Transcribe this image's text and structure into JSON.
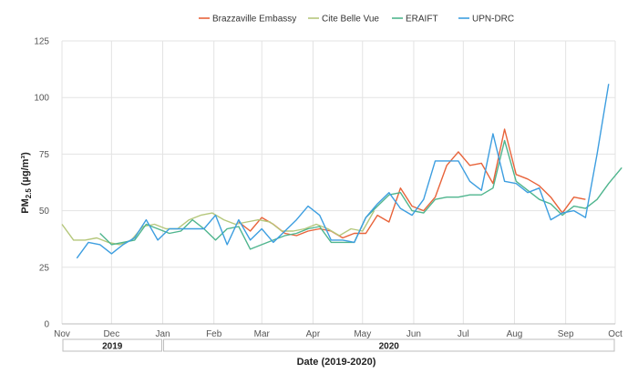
{
  "chart_data": {
    "type": "line",
    "title": "",
    "xlabel": "Date (2019-2020)",
    "ylabel_main": "PM",
    "ylabel_sub": "2.5",
    "ylabel_units": "(µg/m³)",
    "ylim": [
      0,
      125
    ],
    "yticks": [
      0,
      25,
      50,
      75,
      100,
      125
    ],
    "x_ticks": [
      {
        "date": "2019-11-01",
        "label": "Nov"
      },
      {
        "date": "2019-12-01",
        "label": "Dec"
      },
      {
        "date": "2020-01-01",
        "label": "Jan"
      },
      {
        "date": "2020-02-01",
        "label": "Feb"
      },
      {
        "date": "2020-03-01",
        "label": "Mar"
      },
      {
        "date": "2020-04-01",
        "label": "Apr"
      },
      {
        "date": "2020-05-01",
        "label": "May"
      },
      {
        "date": "2020-06-01",
        "label": "Jun"
      },
      {
        "date": "2020-07-01",
        "label": "Jul"
      },
      {
        "date": "2020-08-01",
        "label": "Aug"
      },
      {
        "date": "2020-09-01",
        "label": "Sep"
      },
      {
        "date": "2020-10-01",
        "label": "Oct"
      }
    ],
    "x_range": [
      "2019-11-01",
      "2020-10-01"
    ],
    "year_bands": [
      {
        "label": "2019",
        "start": "2019-11-01",
        "end": "2020-01-01"
      },
      {
        "label": "2020",
        "start": "2020-01-01",
        "end": "2020-10-01"
      }
    ],
    "grid": true,
    "legend_position": "top",
    "series": [
      {
        "name": "Brazzaville Embassy",
        "color": "#e8633a",
        "points": [
          [
            "2020-02-16",
            45
          ],
          [
            "2020-02-23",
            41
          ],
          [
            "2020-03-01",
            47
          ],
          [
            "2020-03-08",
            44
          ],
          [
            "2020-03-15",
            40
          ],
          [
            "2020-03-22",
            39
          ],
          [
            "2020-03-29",
            41
          ],
          [
            "2020-04-05",
            42
          ],
          [
            "2020-04-12",
            41
          ],
          [
            "2020-04-19",
            38
          ],
          [
            "2020-04-26",
            40
          ],
          [
            "2020-05-03",
            40
          ],
          [
            "2020-05-10",
            48
          ],
          [
            "2020-05-17",
            45
          ],
          [
            "2020-05-24",
            60
          ],
          [
            "2020-05-31",
            52
          ],
          [
            "2020-06-07",
            50
          ],
          [
            "2020-06-14",
            56
          ],
          [
            "2020-06-21",
            70
          ],
          [
            "2020-06-28",
            76
          ],
          [
            "2020-07-05",
            70
          ],
          [
            "2020-07-12",
            71
          ],
          [
            "2020-07-19",
            62
          ],
          [
            "2020-07-26",
            86
          ],
          [
            "2020-08-02",
            66
          ],
          [
            "2020-08-09",
            64
          ],
          [
            "2020-08-16",
            61
          ],
          [
            "2020-08-23",
            56
          ],
          [
            "2020-08-30",
            49
          ],
          [
            "2020-09-06",
            56
          ],
          [
            "2020-09-13",
            55
          ]
        ]
      },
      {
        "name": "Cite Belle Vue",
        "color": "#b5c77b",
        "points": [
          [
            "2019-11-01",
            44
          ],
          [
            "2019-11-08",
            37
          ],
          [
            "2019-11-15",
            37
          ],
          [
            "2019-11-22",
            38
          ],
          [
            "2019-11-29",
            36
          ],
          [
            "2019-12-06",
            35
          ],
          [
            "2019-12-13",
            37
          ],
          [
            "2019-12-20",
            43
          ],
          [
            "2019-12-27",
            44
          ],
          [
            "2020-01-03",
            42
          ],
          [
            "2020-01-10",
            42
          ],
          [
            "2020-01-17",
            46
          ],
          [
            "2020-01-24",
            48
          ],
          [
            "2020-01-31",
            49
          ],
          [
            "2020-02-07",
            46
          ],
          [
            "2020-02-14",
            44
          ],
          [
            "2020-02-21",
            45
          ],
          [
            "2020-02-28",
            46
          ],
          [
            "2020-03-06",
            45
          ],
          [
            "2020-03-13",
            41
          ],
          [
            "2020-03-20",
            41
          ],
          [
            "2020-03-27",
            42
          ],
          [
            "2020-04-03",
            44
          ],
          [
            "2020-04-10",
            42
          ],
          [
            "2020-04-17",
            39
          ],
          [
            "2020-04-24",
            42
          ],
          [
            "2020-05-01",
            41
          ],
          [
            "2020-05-08",
            50
          ]
        ]
      },
      {
        "name": "ERAIFT",
        "color": "#4fb58e",
        "points": [
          [
            "2019-11-24",
            40
          ],
          [
            "2019-12-01",
            35
          ],
          [
            "2019-12-08",
            36
          ],
          [
            "2019-12-15",
            37
          ],
          [
            "2019-12-22",
            44
          ],
          [
            "2019-12-29",
            42
          ],
          [
            "2020-01-05",
            40
          ],
          [
            "2020-01-12",
            41
          ],
          [
            "2020-01-19",
            46
          ],
          [
            "2020-01-26",
            42
          ],
          [
            "2020-02-02",
            37
          ],
          [
            "2020-02-09",
            42
          ],
          [
            "2020-02-16",
            43
          ],
          [
            "2020-02-23",
            33
          ],
          [
            "2020-03-01",
            35
          ],
          [
            "2020-03-08",
            37
          ],
          [
            "2020-03-15",
            39
          ],
          [
            "2020-03-22",
            40
          ],
          [
            "2020-03-29",
            42
          ],
          [
            "2020-04-05",
            43
          ],
          [
            "2020-04-12",
            36
          ],
          [
            "2020-04-19",
            36
          ],
          [
            "2020-04-26",
            36
          ],
          [
            "2020-05-03",
            47
          ],
          [
            "2020-05-10",
            52
          ],
          [
            "2020-05-17",
            57
          ],
          [
            "2020-05-24",
            58
          ],
          [
            "2020-05-31",
            50
          ],
          [
            "2020-06-07",
            49
          ],
          [
            "2020-06-14",
            55
          ],
          [
            "2020-06-21",
            56
          ],
          [
            "2020-06-28",
            56
          ],
          [
            "2020-07-05",
            57
          ],
          [
            "2020-07-12",
            57
          ],
          [
            "2020-07-19",
            60
          ],
          [
            "2020-07-26",
            81
          ],
          [
            "2020-08-02",
            63
          ],
          [
            "2020-08-09",
            59
          ],
          [
            "2020-08-16",
            55
          ],
          [
            "2020-08-23",
            53
          ],
          [
            "2020-08-30",
            48
          ],
          [
            "2020-09-06",
            52
          ],
          [
            "2020-09-13",
            51
          ],
          [
            "2020-09-20",
            55
          ],
          [
            "2020-09-27",
            62
          ],
          [
            "2020-10-05",
            69
          ]
        ]
      },
      {
        "name": "UPN-DRC",
        "color": "#3d9ee0",
        "points": [
          [
            "2019-11-10",
            29
          ],
          [
            "2019-11-17",
            36
          ],
          [
            "2019-11-24",
            35
          ],
          [
            "2019-12-01",
            31
          ],
          [
            "2019-12-08",
            35
          ],
          [
            "2019-12-15",
            38
          ],
          [
            "2019-12-22",
            46
          ],
          [
            "2019-12-29",
            37
          ],
          [
            "2020-01-05",
            42
          ],
          [
            "2020-01-12",
            42
          ],
          [
            "2020-01-19",
            42
          ],
          [
            "2020-01-26",
            42
          ],
          [
            "2020-02-02",
            48
          ],
          [
            "2020-02-09",
            35
          ],
          [
            "2020-02-16",
            46
          ],
          [
            "2020-02-23",
            37
          ],
          [
            "2020-03-01",
            42
          ],
          [
            "2020-03-08",
            36
          ],
          [
            "2020-03-15",
            41
          ],
          [
            "2020-03-22",
            46
          ],
          [
            "2020-03-29",
            52
          ],
          [
            "2020-04-05",
            48
          ],
          [
            "2020-04-12",
            37
          ],
          [
            "2020-04-19",
            37
          ],
          [
            "2020-04-26",
            36
          ],
          [
            "2020-05-03",
            47
          ],
          [
            "2020-05-10",
            53
          ],
          [
            "2020-05-17",
            58
          ],
          [
            "2020-05-24",
            51
          ],
          [
            "2020-05-31",
            48
          ],
          [
            "2020-06-07",
            55
          ],
          [
            "2020-06-14",
            72
          ],
          [
            "2020-06-21",
            72
          ],
          [
            "2020-06-28",
            72
          ],
          [
            "2020-07-05",
            63
          ],
          [
            "2020-07-12",
            59
          ],
          [
            "2020-07-19",
            84
          ],
          [
            "2020-07-26",
            63
          ],
          [
            "2020-08-02",
            62
          ],
          [
            "2020-08-09",
            58
          ],
          [
            "2020-08-16",
            60
          ],
          [
            "2020-08-23",
            46
          ],
          [
            "2020-08-30",
            49
          ],
          [
            "2020-09-06",
            50
          ],
          [
            "2020-09-13",
            47
          ],
          [
            "2020-09-20",
            75
          ],
          [
            "2020-09-27",
            106
          ]
        ]
      }
    ]
  }
}
